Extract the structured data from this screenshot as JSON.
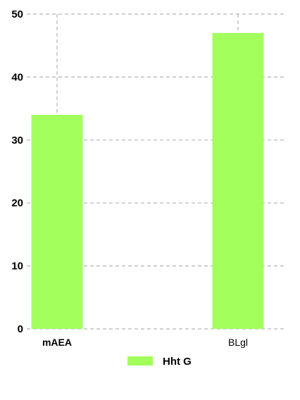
{
  "chart_data": {
    "type": "bar",
    "title": "",
    "xlabel": "",
    "ylabel": "",
    "categories": [
      "mAEA",
      "BLgl"
    ],
    "category_label_weights": [
      "bold",
      "normal"
    ],
    "series": [
      {
        "name": "Hht G",
        "values": [
          34,
          47
        ],
        "color": "#a2ff5c"
      }
    ],
    "ylim": [
      0,
      50
    ],
    "yticks": [
      0,
      10,
      20,
      30,
      40,
      50
    ],
    "grid": true,
    "legend_position": "bottom"
  }
}
